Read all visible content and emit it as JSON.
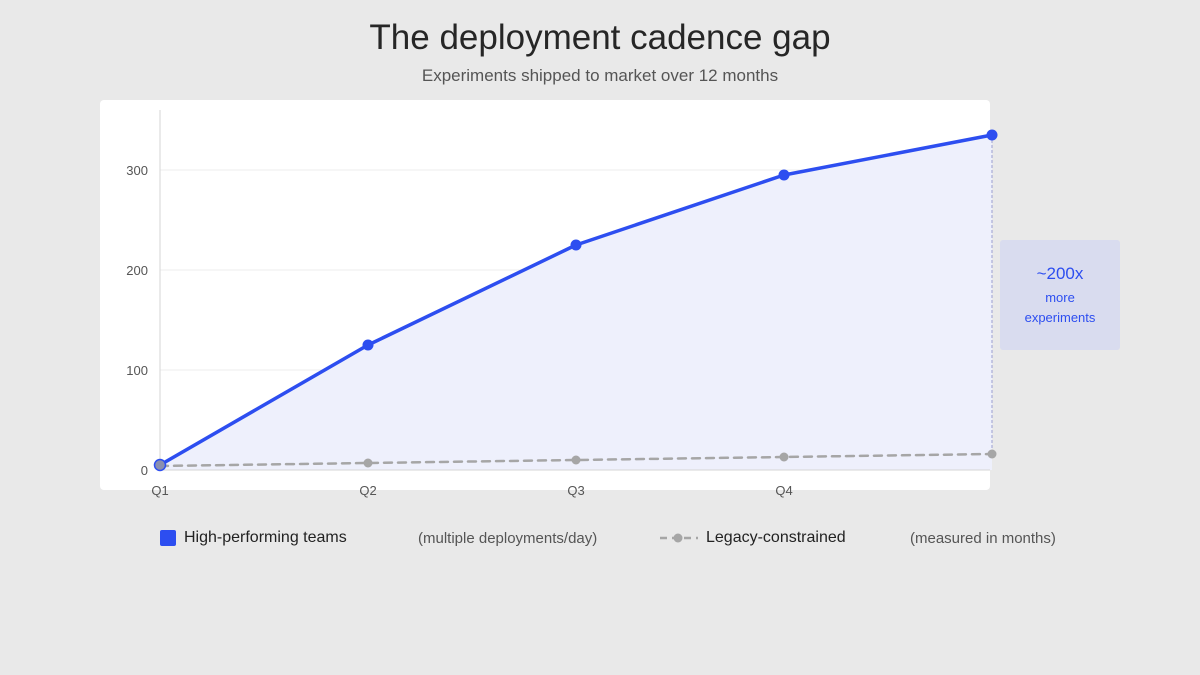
{
  "chart_data": {
    "type": "line",
    "title": "The deployment cadence gap",
    "subtitle": "Experiments shipped to market over 12 months",
    "xlabel": "",
    "ylabel": "",
    "categories": [
      "Q1",
      "Q2",
      "Q3",
      "Q4",
      ""
    ],
    "y_ticks": [
      "0",
      "100",
      "200",
      "300"
    ],
    "ylim": [
      0,
      360
    ],
    "grid": true,
    "series": [
      {
        "name": "High-performing teams",
        "note": "(multiple deployments/day)",
        "values": [
          5,
          125,
          225,
          295,
          335
        ],
        "color": "#2d4ef0",
        "fill": "#eef0fc",
        "style": "solid"
      },
      {
        "name": "Legacy-constrained",
        "note": "(measured in months)",
        "values": [
          4,
          7,
          10,
          13,
          16
        ],
        "color": "#a6a6a6",
        "style": "dashed"
      }
    ],
    "annotation": {
      "headline": "~200x",
      "line1": "more",
      "line2": "experiments",
      "color": "#2d4ef0"
    },
    "legend_position": "bottom"
  }
}
